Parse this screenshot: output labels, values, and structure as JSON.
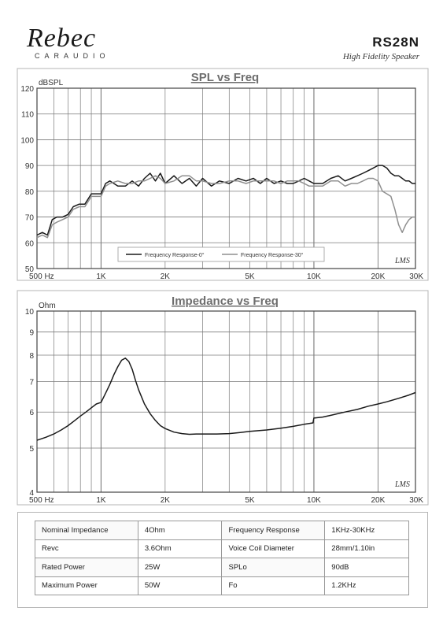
{
  "header": {
    "brand": "Rebec",
    "brand_sub": "CARAUDIO",
    "model": "RS28N",
    "tagline": "High Fidelity Speaker"
  },
  "chart_data": [
    {
      "type": "line",
      "title": "SPL vs Freq",
      "ylabel": "dBSPL",
      "xscale": "log",
      "xlim": [
        500,
        30000
      ],
      "ylim": [
        50,
        120
      ],
      "grid": true,
      "legend_position": "bottom-center",
      "watermark": "LMS",
      "x_ticks": [
        {
          "value": 500,
          "label": "500  Hz"
        },
        {
          "value": 1000,
          "label": "1K"
        },
        {
          "value": 2000,
          "label": "2K"
        },
        {
          "value": 5000,
          "label": "5K"
        },
        {
          "value": 10000,
          "label": "10K"
        },
        {
          "value": 20000,
          "label": "20K"
        },
        {
          "value": 30000,
          "label": "30K"
        }
      ],
      "y_ticks": [
        50,
        60,
        70,
        80,
        90,
        100,
        110,
        120
      ],
      "series": [
        {
          "name": "Frequency Response-0°",
          "color": "#1a1a1a",
          "x": [
            500,
            530,
            560,
            590,
            620,
            660,
            700,
            740,
            790,
            840,
            900,
            960,
            1000,
            1050,
            1100,
            1200,
            1300,
            1400,
            1500,
            1600,
            1700,
            1800,
            1900,
            2000,
            2200,
            2400,
            2600,
            2800,
            3000,
            3300,
            3600,
            4000,
            4400,
            4800,
            5200,
            5600,
            6000,
            6500,
            7000,
            7500,
            8000,
            8500,
            9000,
            9500,
            10000,
            11000,
            12000,
            13000,
            14000,
            15000,
            16000,
            17000,
            18000,
            19000,
            20000,
            21000,
            22000,
            23000,
            24000,
            25000,
            26000,
            27000,
            28000,
            29000,
            30000
          ],
          "values": [
            63,
            64,
            63,
            69,
            70,
            70,
            71,
            74,
            75,
            75,
            79,
            79,
            79,
            83,
            84,
            82,
            82,
            84,
            82,
            85,
            87,
            84,
            87,
            83,
            86,
            83,
            85,
            82,
            85,
            82,
            84,
            83,
            85,
            84,
            85,
            83,
            85,
            83,
            84,
            83,
            83,
            84,
            85,
            84,
            83,
            83,
            85,
            86,
            84,
            85,
            86,
            87,
            88,
            89,
            90,
            90,
            89,
            87,
            86,
            86,
            85,
            84,
            84,
            83,
            83
          ]
        },
        {
          "name": "Frequency Response-30°",
          "color": "#8f8f8f",
          "x": [
            500,
            530,
            560,
            590,
            620,
            660,
            700,
            740,
            790,
            840,
            900,
            960,
            1000,
            1050,
            1100,
            1200,
            1300,
            1400,
            1500,
            1600,
            1700,
            1800,
            1900,
            2000,
            2200,
            2400,
            2600,
            2800,
            3000,
            3300,
            3600,
            4000,
            4400,
            4800,
            5200,
            5600,
            6000,
            6500,
            7000,
            7500,
            8000,
            8500,
            9000,
            9500,
            10000,
            11000,
            12000,
            13000,
            14000,
            15000,
            16000,
            17000,
            18000,
            19000,
            20000,
            21000,
            22000,
            23000,
            24000,
            25000,
            26000,
            27000,
            28000,
            29000,
            30000
          ],
          "values": [
            62,
            63,
            62,
            67,
            68,
            69,
            70,
            73,
            74,
            74,
            78,
            78,
            78,
            82,
            83,
            84,
            83,
            83,
            84,
            84,
            85,
            86,
            85,
            83,
            84,
            86,
            86,
            84,
            84,
            83,
            83,
            84,
            84,
            83,
            84,
            84,
            84,
            84,
            83,
            84,
            84,
            84,
            83,
            82,
            82,
            82,
            84,
            84,
            82,
            83,
            83,
            84,
            85,
            85,
            84,
            80,
            79,
            78,
            73,
            67,
            64,
            67,
            69,
            70,
            70
          ]
        }
      ]
    },
    {
      "type": "line",
      "title": "Impedance vs Freq",
      "ylabel": "Ohm",
      "xscale": "log",
      "yscale": "log",
      "xlim": [
        500,
        30000
      ],
      "ylim": [
        4,
        10
      ],
      "grid": true,
      "watermark": "LMS",
      "x_ticks": [
        {
          "value": 500,
          "label": "500  Hz"
        },
        {
          "value": 1000,
          "label": "1K"
        },
        {
          "value": 2000,
          "label": "2K"
        },
        {
          "value": 5000,
          "label": "5K"
        },
        {
          "value": 10000,
          "label": "10K"
        },
        {
          "value": 20000,
          "label": "20K"
        },
        {
          "value": 30000,
          "label": "30K"
        }
      ],
      "y_ticks": [
        4,
        5,
        6,
        7,
        8,
        9,
        10
      ],
      "series": [
        {
          "name": "",
          "color": "#1a1a1a",
          "x": [
            500,
            550,
            600,
            650,
            700,
            750,
            800,
            850,
            900,
            950,
            1000,
            1050,
            1100,
            1150,
            1200,
            1250,
            1300,
            1350,
            1400,
            1450,
            1500,
            1600,
            1700,
            1800,
            1900,
            2000,
            2200,
            2400,
            2600,
            2800,
            3000,
            3500,
            4000,
            4500,
            5000,
            6000,
            7000,
            8000,
            9000,
            9900,
            10000,
            11000,
            12000,
            14000,
            16000,
            18000,
            20000,
            22000,
            25000,
            28000,
            30000
          ],
          "values": [
            5.2,
            5.28,
            5.37,
            5.48,
            5.6,
            5.74,
            5.88,
            6.0,
            6.13,
            6.25,
            6.3,
            6.6,
            6.9,
            7.25,
            7.55,
            7.8,
            7.88,
            7.75,
            7.45,
            7.05,
            6.72,
            6.25,
            5.95,
            5.75,
            5.6,
            5.52,
            5.42,
            5.38,
            5.36,
            5.37,
            5.37,
            5.37,
            5.38,
            5.41,
            5.44,
            5.48,
            5.53,
            5.58,
            5.64,
            5.68,
            5.82,
            5.85,
            5.9,
            6.0,
            6.08,
            6.18,
            6.25,
            6.32,
            6.43,
            6.54,
            6.62
          ]
        }
      ]
    }
  ],
  "specs": [
    {
      "label": "Nominal Impedance",
      "value": "4Ohm",
      "label2": "Frequency Response",
      "value2": "1KHz-30KHz"
    },
    {
      "label": "Revc",
      "value": "3.6Ohm",
      "label2": "Voice Coil Diameter",
      "value2": "28mm/1.10in"
    },
    {
      "label": "Rated Power",
      "value": "25W",
      "label2": "SPLo",
      "value2": "90dB"
    },
    {
      "label": "Maximum Power",
      "value": "50W",
      "label2": "Fo",
      "value2": "1.2KHz"
    }
  ]
}
